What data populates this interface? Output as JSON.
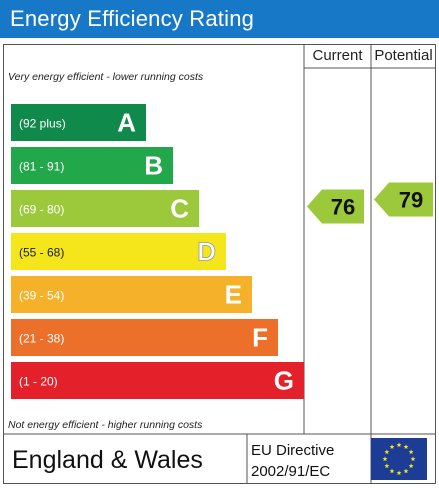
{
  "header": {
    "title": "Energy Efficiency Rating"
  },
  "columns": {
    "current": "Current",
    "potential": "Potential"
  },
  "notes": {
    "top": "Very energy efficient - lower running costs",
    "bottom": "Not energy efficient - higher running costs"
  },
  "footer": {
    "country": "England & Wales",
    "directive_line1": "EU Directive",
    "directive_line2": "2002/91/EC"
  },
  "chart_data": {
    "type": "bar",
    "title": "Energy Efficiency Rating",
    "bands": [
      {
        "range": "(92 plus)",
        "letter": "A",
        "color": "#0f8a4a"
      },
      {
        "range": "(81 - 91)",
        "letter": "B",
        "color": "#22a84a"
      },
      {
        "range": "(69 - 80)",
        "letter": "C",
        "color": "#9cc83c"
      },
      {
        "range": "(55 - 68)",
        "letter": "D",
        "color": "#f4e61a"
      },
      {
        "range": "(39 - 54)",
        "letter": "E",
        "color": "#f5b12a"
      },
      {
        "range": "(21 - 38)",
        "letter": "F",
        "color": "#ec6f2a"
      },
      {
        "range": "(1 - 20)",
        "letter": "G",
        "color": "#e4202a"
      }
    ],
    "current": {
      "value": 76,
      "band": "C",
      "color": "#9cc83c"
    },
    "potential": {
      "value": 79,
      "band": "C",
      "color": "#9cc83c"
    }
  },
  "colors": {
    "title_bar": "#1878c8",
    "eu_blue": "#1c3c96",
    "eu_star": "#f4e41a"
  }
}
